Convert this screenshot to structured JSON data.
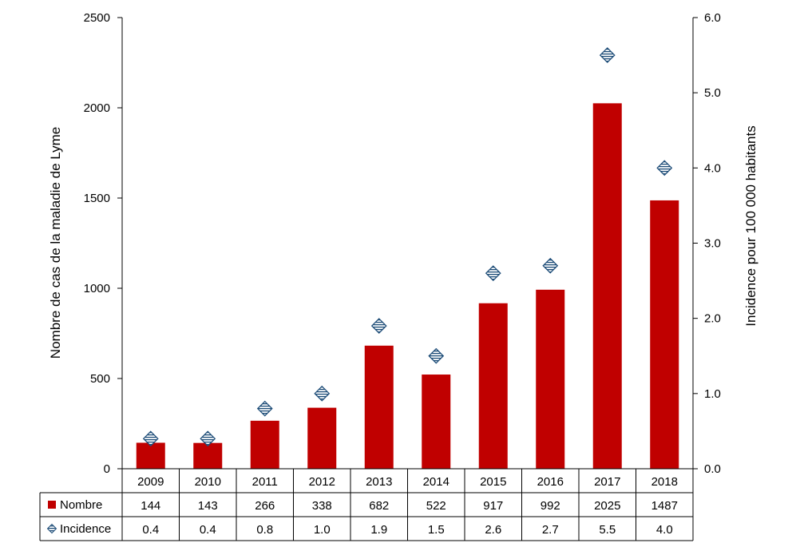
{
  "chart_data": {
    "type": "bar",
    "categories": [
      "2009",
      "2010",
      "2011",
      "2012",
      "2013",
      "2014",
      "2015",
      "2016",
      "2017",
      "2018"
    ],
    "series": [
      {
        "name": "Nombre",
        "type": "bar",
        "axis": "left",
        "values": [
          144,
          143,
          266,
          338,
          682,
          522,
          917,
          992,
          2025,
          1487
        ],
        "labels": [
          "144",
          "143",
          "266",
          "338",
          "682",
          "522",
          "917",
          "992",
          "2025",
          "1487"
        ],
        "color": "#c00000"
      },
      {
        "name": "Incidence",
        "type": "scatter",
        "axis": "right",
        "values": [
          0.4,
          0.4,
          0.8,
          1.0,
          1.9,
          1.5,
          2.6,
          2.7,
          5.5,
          4.0
        ],
        "labels": [
          "0.4",
          "0.4",
          "0.8",
          "1.0",
          "1.9",
          "1.5",
          "2.6",
          "2.7",
          "5.5",
          "4.0"
        ],
        "color": "#1f4e79"
      }
    ],
    "ylabel": "Nombre de cas de la maladie de Lyme",
    "y2label": "Incidence pour 100 000 habitants",
    "ylim": [
      0,
      2500
    ],
    "y2lim": [
      0,
      6
    ],
    "yticks": [
      "0",
      "500",
      "1000",
      "1500",
      "2000",
      "2500"
    ],
    "y2ticks": [
      "0.0",
      "1.0",
      "2.0",
      "3.0",
      "4.0",
      "5.0",
      "6.0"
    ],
    "grid": false,
    "legend": "data-table-left"
  }
}
